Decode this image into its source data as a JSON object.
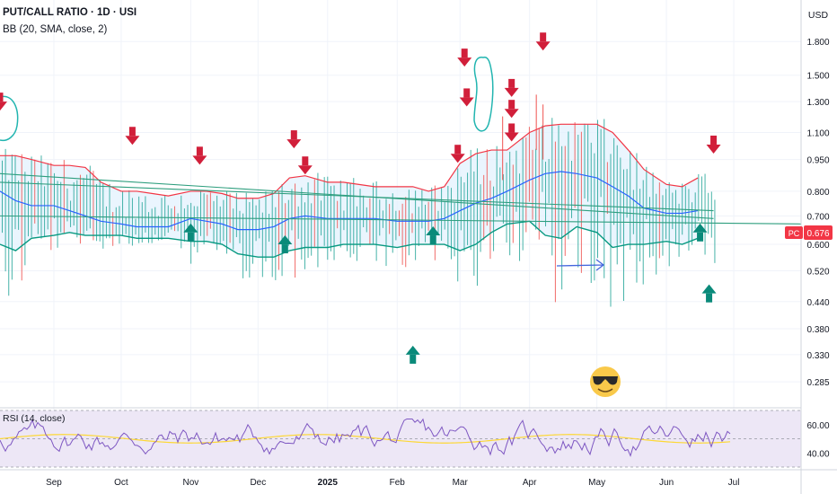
{
  "header": {
    "symbol_line": "PUT/CALL RATIO · 1D · USI",
    "indicator_line": "BB (20, SMA, close, 2)"
  },
  "currency_label": "USD",
  "last_price": {
    "tag": "PC",
    "value": "0.676",
    "color": "#f23645"
  },
  "colors": {
    "bb_upper": "#f23645",
    "bb_lower": "#089981",
    "bb_basis": "#2962ff",
    "bb_fill": "#e3f2fd",
    "bar_up": "#26a69a",
    "bar_down": "#ef5350",
    "arrow_down": "#d11f3a",
    "arrow_up": "#0a8a7a",
    "trendline": "#2e9e7e",
    "drawing_teal": "#22b5b0",
    "drawing_blue": "#4466dd",
    "rsi_line": "#7e57c2",
    "rsi_ma": "#fdd835",
    "rsi_band": "#ede7f6"
  },
  "icons": [
    "down-arrow-icon",
    "up-arrow-icon",
    "cool-emoji-icon",
    "right-arrow-drawing-icon"
  ],
  "rsi": {
    "label": "RSI (14, close)",
    "levels": [
      "60.00",
      "40.00"
    ]
  },
  "chart_data": {
    "type": "bar",
    "symbol": "PUT/CALL RATIO",
    "interval": "1D",
    "y_scale": "log",
    "y_range": [
      0.25,
      2.2
    ],
    "y_ticks": [
      "1.800",
      "1.500",
      "1.300",
      "1.100",
      "0.950",
      "0.800",
      "0.700",
      "0.600",
      "0.520",
      "0.440",
      "0.380",
      "0.330",
      "0.285"
    ],
    "x_ticks": [
      "Sep",
      "Oct",
      "Nov",
      "Dec",
      "2025",
      "Feb",
      "Mar",
      "Apr",
      "May",
      "Jun",
      "Jul"
    ],
    "x_tick_dates": [
      "2024-09-01",
      "2024-10-01",
      "2024-11-01",
      "2024-12-01",
      "2025-01-01",
      "2025-02-01",
      "2025-03-01",
      "2025-04-01",
      "2025-05-01",
      "2025-06-01",
      "2025-07-01"
    ],
    "x_range": [
      "2024-08-08",
      "2025-07-31"
    ],
    "bollinger": {
      "period": 20,
      "std_dev": 2,
      "dates": [
        "2024-08-08",
        "2024-08-15",
        "2024-08-22",
        "2024-09-01",
        "2024-09-08",
        "2024-09-15",
        "2024-09-22",
        "2024-10-01",
        "2024-10-08",
        "2024-10-15",
        "2024-10-22",
        "2024-11-01",
        "2024-11-08",
        "2024-11-15",
        "2024-11-22",
        "2024-12-01",
        "2024-12-08",
        "2024-12-15",
        "2024-12-22",
        "2025-01-01",
        "2025-01-08",
        "2025-01-15",
        "2025-01-22",
        "2025-02-01",
        "2025-02-08",
        "2025-02-15",
        "2025-02-22",
        "2025-03-01",
        "2025-03-08",
        "2025-03-15",
        "2025-03-22",
        "2025-04-01",
        "2025-04-08",
        "2025-04-15",
        "2025-04-22",
        "2025-05-01",
        "2025-05-08",
        "2025-05-15",
        "2025-05-22",
        "2025-06-01",
        "2025-06-08",
        "2025-06-15"
      ],
      "upper": [
        0.97,
        0.97,
        0.95,
        0.92,
        0.92,
        0.91,
        0.84,
        0.8,
        0.8,
        0.79,
        0.78,
        0.8,
        0.8,
        0.79,
        0.77,
        0.77,
        0.79,
        0.86,
        0.87,
        0.84,
        0.84,
        0.83,
        0.82,
        0.82,
        0.82,
        0.8,
        0.82,
        0.93,
        0.98,
        1.0,
        1.0,
        1.1,
        1.14,
        1.15,
        1.15,
        1.15,
        1.1,
        1.0,
        0.9,
        0.83,
        0.82,
        0.86
      ],
      "basis": [
        0.8,
        0.76,
        0.74,
        0.74,
        0.72,
        0.7,
        0.68,
        0.67,
        0.66,
        0.66,
        0.66,
        0.69,
        0.68,
        0.67,
        0.65,
        0.65,
        0.66,
        0.69,
        0.7,
        0.69,
        0.69,
        0.69,
        0.69,
        0.68,
        0.68,
        0.68,
        0.69,
        0.72,
        0.75,
        0.77,
        0.8,
        0.85,
        0.88,
        0.89,
        0.88,
        0.86,
        0.82,
        0.78,
        0.73,
        0.71,
        0.71,
        0.72
      ],
      "lower": [
        0.6,
        0.58,
        0.62,
        0.63,
        0.64,
        0.63,
        0.63,
        0.63,
        0.62,
        0.62,
        0.62,
        0.61,
        0.61,
        0.6,
        0.57,
        0.56,
        0.56,
        0.58,
        0.59,
        0.59,
        0.6,
        0.6,
        0.6,
        0.59,
        0.6,
        0.6,
        0.6,
        0.58,
        0.6,
        0.64,
        0.67,
        0.68,
        0.63,
        0.62,
        0.66,
        0.64,
        0.59,
        0.6,
        0.6,
        0.61,
        0.6,
        0.62
      ]
    },
    "trendlines": [
      {
        "from": [
          "2024-08-08",
          0.88
        ],
        "to": [
          "2025-06-22",
          0.69
        ]
      },
      {
        "from": [
          "2024-08-08",
          0.84
        ],
        "to": [
          "2025-06-22",
          0.72
        ]
      },
      {
        "from": [
          "2024-08-08",
          0.7
        ],
        "to": [
          "2025-07-31",
          0.67
        ]
      }
    ],
    "down_arrows": [
      [
        "2024-08-08",
        1.3
      ],
      [
        "2024-10-06",
        1.08
      ],
      [
        "2024-11-05",
        0.97
      ],
      [
        "2024-12-17",
        1.06
      ],
      [
        "2024-12-22",
        0.92
      ],
      [
        "2025-02-28",
        0.98
      ],
      [
        "2025-03-03",
        1.65
      ],
      [
        "2025-03-04",
        1.33
      ],
      [
        "2025-03-24",
        1.4
      ],
      [
        "2025-03-24",
        1.25
      ],
      [
        "2025-03-24",
        1.1
      ],
      [
        "2025-04-07",
        1.8
      ],
      [
        "2025-06-22",
        1.03
      ]
    ],
    "up_arrows": [
      [
        "2024-11-01",
        0.64
      ],
      [
        "2024-12-13",
        0.6
      ],
      [
        "2025-02-17",
        0.63
      ],
      [
        "2025-02-08",
        0.33
      ],
      [
        "2025-06-16",
        0.64
      ],
      [
        "2025-06-20",
        0.46
      ]
    ],
    "last_value": 0.676,
    "rsi_range": [
      30,
      70
    ]
  }
}
